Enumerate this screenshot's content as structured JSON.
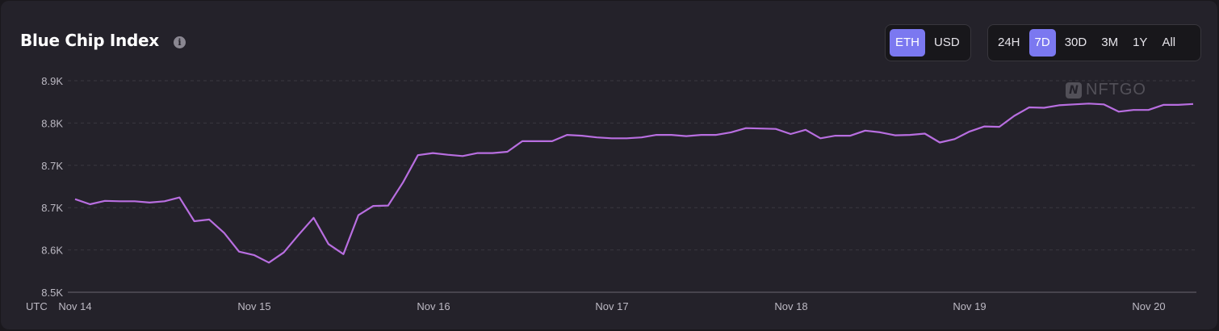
{
  "header": {
    "title": "Blue Chip Index",
    "info_icon": "info-icon",
    "currency_options": [
      "ETH",
      "USD"
    ],
    "currency_selected": "ETH",
    "range_options": [
      "24H",
      "7D",
      "30D",
      "3M",
      "1Y",
      "All"
    ],
    "range_selected": "7D"
  },
  "watermark": {
    "logo_letter": "N",
    "text": "NFTGO"
  },
  "colors": {
    "line": "#b86ee0",
    "accent": "#7b78f0",
    "grid": "#3a3840"
  },
  "chart_data": {
    "type": "line",
    "title": "Blue Chip Index",
    "timezone_label": "UTC",
    "x_tick_labels": [
      "Nov 14",
      "Nov 15",
      "Nov 16",
      "Nov 17",
      "Nov 18",
      "Nov 19",
      "Nov 20"
    ],
    "y_tick_labels": [
      "8.9K",
      "8.8K",
      "8.7K",
      "8.7K",
      "8.6K",
      "8.5K"
    ],
    "ylim": [
      8500,
      9000
    ],
    "grid": true,
    "series": [
      {
        "values": [
          8720,
          8708,
          8716,
          8715,
          8715,
          8712,
          8715,
          8724,
          8668,
          8672,
          8640,
          8596,
          8588,
          8570,
          8594,
          8636,
          8676,
          8614,
          8590,
          8682,
          8704,
          8705,
          8760,
          8824,
          8829,
          8825,
          8822,
          8829,
          8829,
          8832,
          8857,
          8857,
          8857,
          8872,
          8870,
          8866,
          8864,
          8864,
          8866,
          8872,
          8872,
          8869,
          8872,
          8872,
          8878,
          8888,
          8887,
          8886,
          8874,
          8884,
          8864,
          8870,
          8870,
          8882,
          8878,
          8871,
          8872,
          8875,
          8854,
          8862,
          8880,
          8892,
          8891,
          8917,
          8937,
          8936,
          8942,
          8944,
          8946,
          8944,
          8927,
          8931,
          8931,
          8943,
          8943,
          8945
        ]
      }
    ]
  }
}
